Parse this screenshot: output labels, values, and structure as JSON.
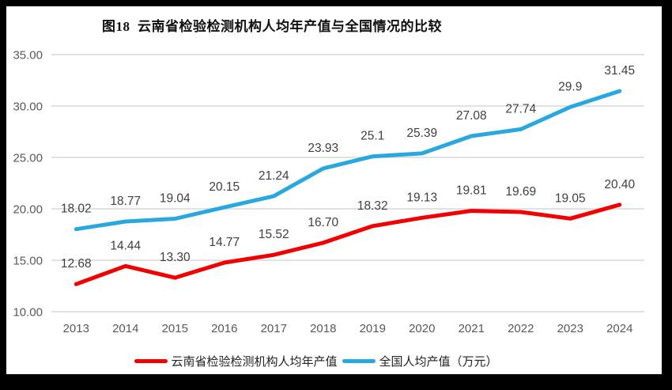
{
  "title": "图18  云南省检验检测机构人均年产值与全国情况的比较",
  "colors": {
    "yunnan_red": "#f20000",
    "national_blue": "#29a8e0",
    "gridline": "#d9d9d9",
    "axis_tick_text": "#595959",
    "data_label_text": "#3f3f3f",
    "title_text": "#111111",
    "frame_black": "#000000",
    "panel_white": "#ffffff"
  },
  "chart_data": {
    "type": "line",
    "x": [
      "2013",
      "2014",
      "2015",
      "2016",
      "2017",
      "2018",
      "2019",
      "2020",
      "2021",
      "2022",
      "2023",
      "2024"
    ],
    "series": [
      {
        "key": "yunnan",
        "name": "云南省检验检测机构人均年产值",
        "color_key": "yunnan_red",
        "values": [
          12.68,
          14.44,
          13.3,
          14.77,
          15.52,
          16.7,
          18.32,
          19.13,
          19.81,
          19.69,
          19.05,
          20.4
        ],
        "point_labels": [
          "12.68",
          "14.44",
          "13.30",
          "14.77",
          "15.52",
          "16.70",
          "18.32",
          "19.13",
          "19.81",
          "19.69",
          "19.05",
          "20.40"
        ]
      },
      {
        "key": "national",
        "name": "全国人均产值（万元）",
        "color_key": "national_blue",
        "values": [
          18.02,
          18.77,
          19.04,
          20.15,
          21.24,
          23.93,
          25.1,
          25.39,
          27.08,
          27.74,
          29.9,
          31.45
        ],
        "point_labels": [
          "18.02",
          "18.77",
          "19.04",
          "20.15",
          "21.24",
          "23.93",
          "25.1",
          "25.39",
          "27.08",
          "27.74",
          "29.9",
          "31.45"
        ]
      }
    ],
    "title": "图18  云南省检验检测机构人均年产值与全国情况的比较",
    "xlabel": "",
    "ylabel": "",
    "ylim": [
      10,
      35
    ],
    "ytick_values": [
      10,
      15,
      20,
      25,
      30,
      35
    ],
    "ytick_labels": [
      "10.00",
      "15.00",
      "20.00",
      "25.00",
      "30.00",
      "35.00"
    ],
    "grid": true,
    "legend_position": "bottom"
  }
}
